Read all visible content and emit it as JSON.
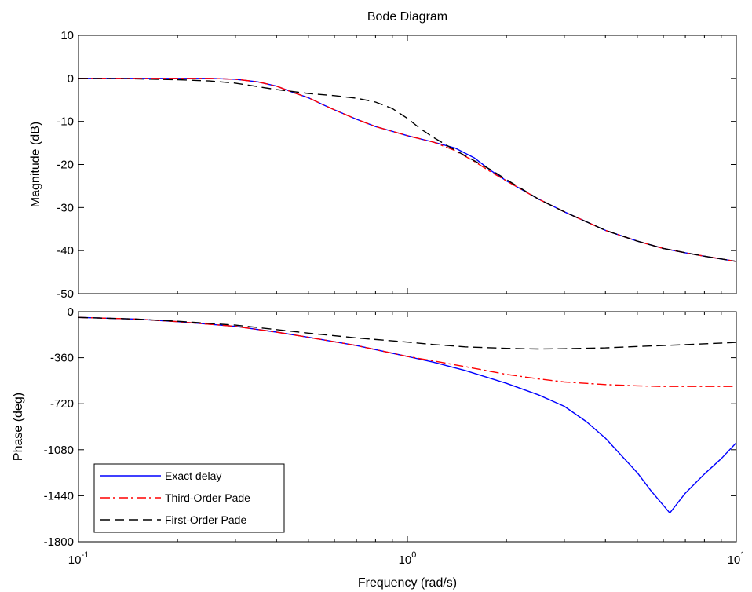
{
  "chart_data": {
    "type": "line",
    "title": "Bode Diagram",
    "xlabel": "Frequency  (rad/s)",
    "x_scale": "log",
    "xlim": [
      0.1,
      10
    ],
    "x_ticks": [
      {
        "value": 0.1,
        "base": "10",
        "exp": "-1"
      },
      {
        "value": 1,
        "base": "10",
        "exp": "0"
      },
      {
        "value": 10,
        "base": "10",
        "exp": "1"
      }
    ],
    "series_colors": {
      "exact": "#0000ff",
      "third": "#ff0000",
      "first": "#000000"
    },
    "legend": {
      "placement": "lower-left (phase panel)",
      "entries": [
        "Exact delay",
        "Third-Order Pade",
        "First-Order Pade"
      ]
    },
    "panels": [
      {
        "id": "magnitude",
        "ylabel": "Magnitude (dB)",
        "ylim": [
          -50,
          10
        ],
        "y_ticks": [
          {
            "value": 10,
            "label": "10"
          },
          {
            "value": 0,
            "label": "0"
          },
          {
            "value": -10,
            "label": "-10"
          },
          {
            "value": -20,
            "label": "-20"
          },
          {
            "value": -30,
            "label": "-30"
          },
          {
            "value": -40,
            "label": "-40"
          },
          {
            "value": -50,
            "label": "-50"
          }
        ],
        "series": [
          {
            "name": "Exact delay",
            "key": "exact",
            "style": "solid",
            "points": [
              [
                0.1,
                0
              ],
              [
                0.15,
                0
              ],
              [
                0.2,
                0
              ],
              [
                0.25,
                0
              ],
              [
                0.3,
                -0.2
              ],
              [
                0.35,
                -0.8
              ],
              [
                0.4,
                -1.8
              ],
              [
                0.45,
                -3.3
              ],
              [
                0.5,
                -4.5
              ],
              [
                0.55,
                -6
              ],
              [
                0.6,
                -7.3
              ],
              [
                0.7,
                -9.5
              ],
              [
                0.8,
                -11.2
              ],
              [
                1,
                -13.3
              ],
              [
                1.2,
                -14.8
              ],
              [
                1.4,
                -16.2
              ],
              [
                1.6,
                -18.5
              ],
              [
                1.8,
                -21.5
              ],
              [
                2,
                -23.8
              ],
              [
                2.5,
                -28
              ],
              [
                3,
                -31
              ],
              [
                4,
                -35.3
              ],
              [
                5,
                -37.8
              ],
              [
                6,
                -39.5
              ],
              [
                7,
                -40.5
              ],
              [
                8,
                -41.3
              ],
              [
                10,
                -42.5
              ]
            ]
          },
          {
            "name": "Third-Order Pade",
            "key": "third",
            "style": "dashdot",
            "points": [
              [
                0.1,
                0
              ],
              [
                0.15,
                0
              ],
              [
                0.2,
                0
              ],
              [
                0.25,
                0
              ],
              [
                0.3,
                -0.2
              ],
              [
                0.35,
                -0.8
              ],
              [
                0.4,
                -1.8
              ],
              [
                0.45,
                -3.3
              ],
              [
                0.5,
                -4.5
              ],
              [
                0.55,
                -6
              ],
              [
                0.6,
                -7.3
              ],
              [
                0.7,
                -9.5
              ],
              [
                0.8,
                -11.2
              ],
              [
                1,
                -13.3
              ],
              [
                1.2,
                -14.8
              ],
              [
                1.4,
                -16.8
              ],
              [
                1.6,
                -19.3
              ],
              [
                1.8,
                -21.8
              ],
              [
                2,
                -23.8
              ],
              [
                2.5,
                -28
              ],
              [
                3,
                -31
              ],
              [
                4,
                -35.3
              ],
              [
                5,
                -37.8
              ],
              [
                6,
                -39.5
              ],
              [
                7,
                -40.5
              ],
              [
                8,
                -41.3
              ],
              [
                10,
                -42.5
              ]
            ]
          },
          {
            "name": "First-Order Pade",
            "key": "first",
            "style": "dashed",
            "points": [
              [
                0.1,
                0
              ],
              [
                0.15,
                -0.1
              ],
              [
                0.2,
                -0.3
              ],
              [
                0.25,
                -0.6
              ],
              [
                0.3,
                -1.1
              ],
              [
                0.35,
                -1.9
              ],
              [
                0.4,
                -2.6
              ],
              [
                0.5,
                -3.5
              ],
              [
                0.6,
                -4
              ],
              [
                0.7,
                -4.6
              ],
              [
                0.8,
                -5.5
              ],
              [
                0.9,
                -7
              ],
              [
                1,
                -9.3
              ],
              [
                1.1,
                -11.8
              ],
              [
                1.2,
                -13.7
              ],
              [
                1.3,
                -15.3
              ],
              [
                1.5,
                -18
              ],
              [
                1.8,
                -21.3
              ],
              [
                2,
                -23.5
              ],
              [
                2.5,
                -28
              ],
              [
                3,
                -31
              ],
              [
                4,
                -35.3
              ],
              [
                5,
                -37.8
              ],
              [
                6,
                -39.5
              ],
              [
                7,
                -40.5
              ],
              [
                8,
                -41.3
              ],
              [
                10,
                -42.5
              ]
            ]
          }
        ]
      },
      {
        "id": "phase",
        "ylabel": "Phase (deg)",
        "ylim": [
          -1800,
          0
        ],
        "y_ticks": [
          {
            "value": 0,
            "label": "0"
          },
          {
            "value": -360,
            "label": "-360"
          },
          {
            "value": -720,
            "label": "-720"
          },
          {
            "value": -1080,
            "label": "-1080"
          },
          {
            "value": -1440,
            "label": "-1440"
          },
          {
            "value": -1800,
            "label": "-1800"
          }
        ],
        "series": [
          {
            "name": "Exact delay",
            "key": "exact",
            "style": "solid",
            "points": [
              [
                0.1,
                -45
              ],
              [
                0.15,
                -58
              ],
              [
                0.2,
                -78
              ],
              [
                0.3,
                -115
              ],
              [
                0.4,
                -160
              ],
              [
                0.5,
                -200
              ],
              [
                0.7,
                -265
              ],
              [
                1,
                -350
              ],
              [
                1.2,
                -395
              ],
              [
                1.5,
                -460
              ],
              [
                2,
                -560
              ],
              [
                2.5,
                -650
              ],
              [
                3,
                -740
              ],
              [
                3.5,
                -860
              ],
              [
                4,
                -990
              ],
              [
                5,
                -1260
              ],
              [
                5.5,
                -1400
              ],
              [
                6.28,
                -1575
              ],
              [
                7,
                -1420
              ],
              [
                8,
                -1270
              ],
              [
                9,
                -1150
              ],
              [
                10,
                -1025
              ]
            ]
          },
          {
            "name": "Third-Order Pade",
            "key": "third",
            "style": "dashdot",
            "points": [
              [
                0.1,
                -45
              ],
              [
                0.15,
                -58
              ],
              [
                0.2,
                -78
              ],
              [
                0.3,
                -115
              ],
              [
                0.4,
                -160
              ],
              [
                0.5,
                -200
              ],
              [
                0.7,
                -265
              ],
              [
                1,
                -350
              ],
              [
                1.2,
                -385
              ],
              [
                1.5,
                -430
              ],
              [
                2,
                -490
              ],
              [
                2.5,
                -525
              ],
              [
                3,
                -550
              ],
              [
                4,
                -570
              ],
              [
                5,
                -580
              ],
              [
                6,
                -585
              ],
              [
                8,
                -585
              ],
              [
                10,
                -585
              ]
            ]
          },
          {
            "name": "First-Order Pade",
            "key": "first",
            "style": "dashed",
            "points": [
              [
                0.1,
                -45
              ],
              [
                0.15,
                -58
              ],
              [
                0.2,
                -75
              ],
              [
                0.3,
                -105
              ],
              [
                0.4,
                -140
              ],
              [
                0.5,
                -168
              ],
              [
                0.7,
                -205
              ],
              [
                1,
                -238
              ],
              [
                1.2,
                -257
              ],
              [
                1.5,
                -275
              ],
              [
                2,
                -287
              ],
              [
                2.5,
                -292
              ],
              [
                3,
                -290
              ],
              [
                4,
                -283
              ],
              [
                5,
                -272
              ],
              [
                7,
                -258
              ],
              [
                10,
                -240
              ]
            ]
          }
        ]
      }
    ]
  }
}
